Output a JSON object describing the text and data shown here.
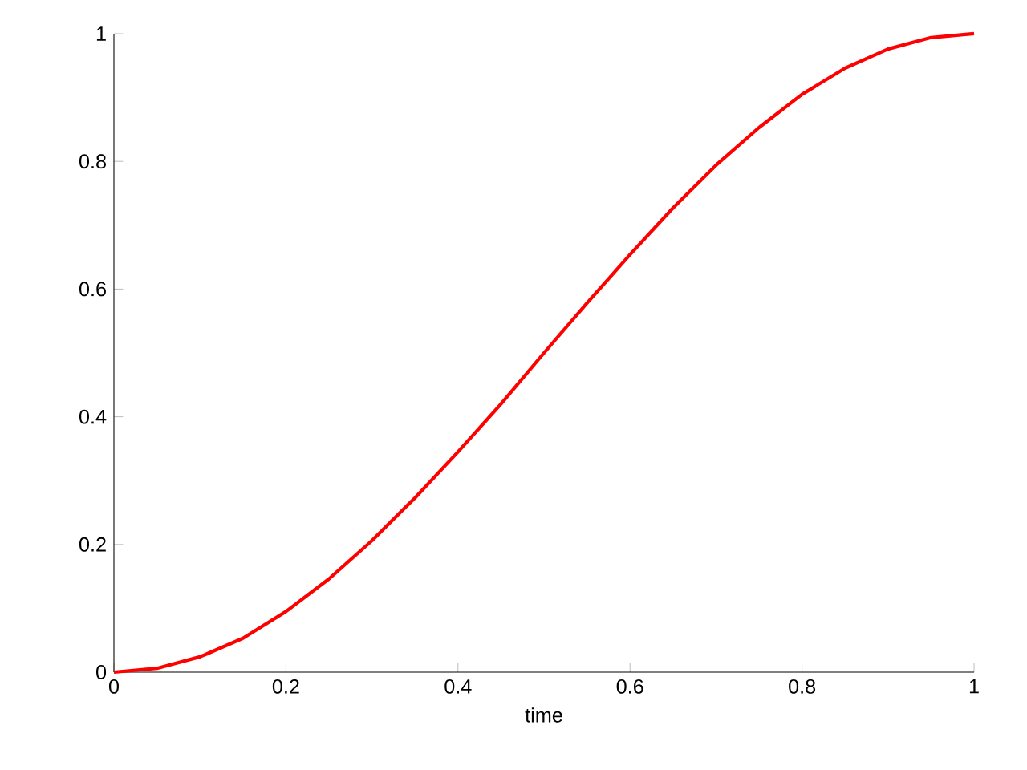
{
  "chart_data": {
    "type": "line",
    "xlabel": "time",
    "x": [
      0,
      0.05,
      0.1,
      0.15,
      0.2,
      0.25,
      0.3,
      0.35,
      0.4,
      0.45,
      0.5,
      0.55,
      0.6,
      0.65,
      0.7,
      0.75,
      0.8,
      0.85,
      0.9,
      0.95,
      1
    ],
    "series": [
      {
        "color": "#ff0000",
        "values": [
          0,
          0.006,
          0.024,
          0.053,
          0.095,
          0.146,
          0.206,
          0.273,
          0.345,
          0.42,
          0.5,
          0.578,
          0.654,
          0.727,
          0.794,
          0.853,
          0.905,
          0.946,
          0.976,
          0.994,
          1
        ]
      }
    ],
    "xlim": [
      0,
      1
    ],
    "ylim": [
      0,
      1
    ],
    "xticks": [
      0,
      0.2,
      0.4,
      0.6,
      0.8,
      1
    ],
    "yticks": [
      0,
      0.2,
      0.4,
      0.6,
      0.8,
      1
    ],
    "grid": false,
    "marker": "none",
    "line_style": "solid"
  }
}
